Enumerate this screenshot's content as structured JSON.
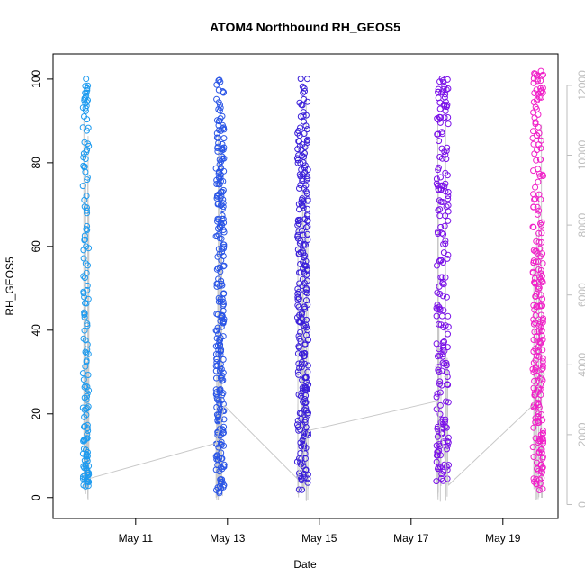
{
  "chart_data": {
    "type": "scatter",
    "title": "ATOM4 Northbound RH_GEOS5",
    "xlabel": "Date",
    "ylabel": "RH_GEOS5",
    "x_ticks": [
      "May 11",
      "May 13",
      "May 15",
      "May 17",
      "May 19"
    ],
    "x_tick_days": [
      11,
      13,
      15,
      17,
      19
    ],
    "xlim_days": [
      9.2,
      20.2
    ],
    "ylim": [
      -5,
      106
    ],
    "y_ticks": [
      0,
      20,
      40,
      60,
      80,
      100
    ],
    "y2_ticks": [
      0,
      2000,
      4000,
      6000,
      8000,
      10000,
      12000
    ],
    "y2lim": [
      -400,
      12900
    ],
    "marker": "open-circle",
    "colors": {
      "flight1": "#1e9bef",
      "flight2": "#2a55e6",
      "flight3": "#3a1fd9",
      "flight4": "#7a10e8",
      "flight5": "#f020c8",
      "altitude_line": "#c8c8c8",
      "frame": "#000000",
      "right_axis": "#bdbdbd"
    },
    "series": [
      {
        "color_key": "flight1",
        "day_start": 9.85,
        "day_end": 9.98,
        "rh_samples": [
          99,
          98,
          97,
          96,
          95,
          93,
          91,
          88,
          84,
          82,
          80,
          78,
          75,
          71,
          68,
          65,
          62,
          59,
          56,
          54,
          50,
          48,
          45,
          43,
          41,
          38,
          35,
          33,
          30,
          27,
          25,
          23,
          21,
          20,
          18,
          16,
          15,
          14,
          13,
          11,
          10,
          9,
          8,
          7,
          6,
          6,
          5,
          5,
          4,
          4,
          3
        ]
      },
      {
        "color_key": "flight2",
        "day_start": 12.75,
        "day_end": 12.93,
        "rh_samples": [
          100,
          98,
          96,
          94,
          92,
          90,
          89,
          88,
          87,
          86,
          85,
          84,
          83,
          82,
          81,
          80,
          79,
          78,
          77,
          76,
          75,
          74,
          73,
          72,
          71,
          70,
          69,
          68,
          67,
          66,
          65,
          64,
          63,
          62,
          61,
          60,
          58,
          57,
          55,
          54,
          52,
          51,
          50,
          48,
          47,
          46,
          45,
          44,
          43,
          42,
          41,
          40,
          39,
          38,
          37,
          36,
          35,
          34,
          33,
          32,
          31,
          30,
          29,
          28,
          27,
          26,
          25,
          24,
          23,
          22,
          21,
          20,
          19,
          18,
          17,
          16,
          15,
          14,
          13,
          12,
          11,
          10,
          9,
          8,
          7,
          6,
          5,
          4,
          3,
          2,
          1
        ]
      },
      {
        "color_key": "flight3",
        "day_start": 14.52,
        "day_end": 14.76,
        "rh_samples": [
          99,
          97,
          95,
          93,
          91,
          89,
          88,
          86,
          85,
          84,
          83,
          82,
          81,
          80,
          79,
          78,
          77,
          76,
          75,
          74,
          72,
          71,
          70,
          69,
          68,
          67,
          66,
          65,
          64,
          63,
          62,
          61,
          60,
          59,
          58,
          57,
          56,
          55,
          54,
          53,
          52,
          51,
          50,
          49,
          48,
          47,
          46,
          45,
          44,
          43,
          42,
          41,
          40,
          39,
          38,
          37,
          36,
          35,
          34,
          33,
          32,
          31,
          30,
          29,
          28,
          27,
          26,
          25,
          24,
          23,
          22,
          21,
          20,
          19,
          18,
          17,
          16,
          15,
          14,
          13,
          12,
          11,
          10,
          9,
          8,
          7,
          6,
          5,
          4,
          3
        ]
      },
      {
        "color_key": "flight4",
        "day_start": 17.55,
        "day_end": 17.82,
        "rh_samples": [
          100,
          99,
          98,
          97,
          96,
          95,
          94,
          93,
          92,
          91,
          90,
          88,
          86,
          84,
          82,
          80,
          78,
          76,
          75,
          74,
          73,
          72,
          71,
          70,
          68,
          66,
          64,
          62,
          60,
          58,
          56,
          54,
          52,
          50,
          48,
          46,
          45,
          44,
          42,
          40,
          38,
          36,
          35,
          34,
          33,
          32,
          31,
          30,
          28,
          26,
          24,
          22,
          20,
          19,
          18,
          17,
          16,
          15,
          14,
          13,
          12,
          11,
          10,
          9,
          8,
          7,
          6,
          5,
          4
        ]
      },
      {
        "color_key": "flight5",
        "day_start": 19.65,
        "day_end": 19.88,
        "rh_samples": [
          102,
          101,
          100,
          99,
          98,
          97,
          96,
          95,
          94,
          92,
          90,
          88,
          86,
          84,
          82,
          80,
          78,
          76,
          74,
          72,
          70,
          68,
          66,
          64,
          62,
          60,
          58,
          57,
          56,
          55,
          54,
          53,
          52,
          51,
          50,
          49,
          48,
          47,
          46,
          45,
          44,
          43,
          42,
          41,
          40,
          39,
          38,
          37,
          36,
          35,
          34,
          33,
          32,
          31,
          30,
          29,
          28,
          27,
          26,
          25,
          24,
          23,
          22,
          21,
          20,
          19,
          18,
          17,
          16,
          15,
          14,
          13,
          12,
          11,
          10,
          9,
          8,
          7,
          6,
          5,
          4,
          3
        ]
      }
    ],
    "altitude_path": [
      {
        "day": 9.98,
        "rh": 4.5
      },
      {
        "day": 12.75,
        "rh": 13
      },
      {
        "day": 12.93,
        "rh": 22
      },
      {
        "day": 14.52,
        "rh": 4.5
      },
      {
        "day": 14.76,
        "rh": 16
      },
      {
        "day": 17.55,
        "rh": 23
      },
      {
        "day": 17.82,
        "rh": 3
      },
      {
        "day": 19.65,
        "rh": 22
      },
      {
        "day": 19.88,
        "rh": 30
      }
    ]
  }
}
